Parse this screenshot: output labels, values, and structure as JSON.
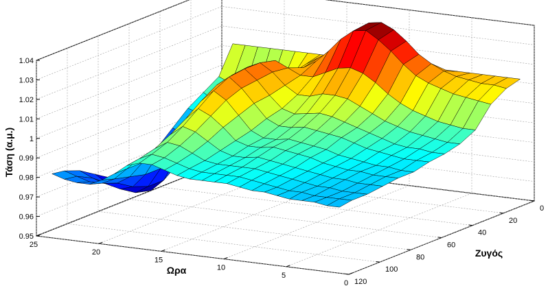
{
  "chart_data": {
    "type": "surface3d",
    "zlabel": "Τάση (α.μ.)",
    "xlabel": "Ωρα",
    "ylabel": "Ζυγός",
    "zticks": [
      "0.95",
      "0.96",
      "0.97",
      "0.98",
      "0.99",
      "1",
      "1.01",
      "1.02",
      "1.03",
      "1.04"
    ],
    "xticks": [
      "25",
      "20",
      "15",
      "10",
      "5",
      "0"
    ],
    "yticks": [
      "0",
      "20",
      "40",
      "60",
      "80",
      "100",
      "120"
    ],
    "hour_range": [
      0,
      25
    ],
    "bus_range": [
      0,
      120
    ],
    "voltage_range": [
      0.95,
      1.04
    ],
    "grid": true,
    "colormap": "jet",
    "surface": {
      "hours": [
        1,
        2,
        3,
        4,
        5,
        6,
        7,
        8,
        9,
        10,
        11,
        12,
        13,
        14,
        15,
        16,
        17,
        18,
        19,
        20,
        21,
        22,
        23,
        24
      ],
      "bus_samples": [
        1,
        10,
        20,
        30,
        40,
        50,
        60,
        70,
        80,
        90,
        100,
        110,
        118
      ],
      "voltage_by_bus_row": [
        [
          1.012,
          1.012,
          1.012,
          1.012,
          1.012,
          1.012,
          1.012,
          1.012,
          1.012,
          1.012,
          1.012,
          1.012,
          1.012,
          1.012,
          1.012,
          1.012,
          1.012,
          1.012,
          1.012,
          1.012,
          1.012,
          1.012,
          1.012,
          1.012
        ],
        [
          1.01,
          1.011,
          1.011,
          1.012,
          1.013,
          1.015,
          1.018,
          1.022,
          1.028,
          1.033,
          1.036,
          1.035,
          1.03,
          1.024,
          1.018,
          1.014,
          1.01,
          1.004,
          0.998,
          0.993,
          0.991,
          0.992,
          0.995,
          0.998
        ],
        [
          1.005,
          1.006,
          1.007,
          1.008,
          1.01,
          1.012,
          1.015,
          1.02,
          1.026,
          1.031,
          1.035,
          1.034,
          1.029,
          1.022,
          1.016,
          1.012,
          1.008,
          1.0,
          0.993,
          0.988,
          0.985,
          0.986,
          0.989,
          0.993
        ],
        [
          0.995,
          0.995,
          0.996,
          0.997,
          0.999,
          1.001,
          1.004,
          1.008,
          1.013,
          1.017,
          1.019,
          1.018,
          1.015,
          1.012,
          1.012,
          1.015,
          1.018,
          1.015,
          1.006,
          0.995,
          0.988,
          0.985,
          0.986,
          0.988
        ],
        [
          0.991,
          0.991,
          0.992,
          0.993,
          0.994,
          0.996,
          0.998,
          1.001,
          1.004,
          1.007,
          1.008,
          1.008,
          1.006,
          1.006,
          1.01,
          1.016,
          1.02,
          1.017,
          1.006,
          0.993,
          0.984,
          0.979,
          0.979,
          0.981
        ],
        [
          0.989,
          0.989,
          0.99,
          0.99,
          0.991,
          0.993,
          0.995,
          0.997,
          0.999,
          1.001,
          1.002,
          1.001,
          1.0,
          1.002,
          1.008,
          1.015,
          1.02,
          1.016,
          1.004,
          0.989,
          0.978,
          0.972,
          0.971,
          0.974
        ],
        [
          0.988,
          0.988,
          0.988,
          0.989,
          0.99,
          0.991,
          0.993,
          0.995,
          0.996,
          0.997,
          0.998,
          0.997,
          0.997,
          1.0,
          1.007,
          1.014,
          1.019,
          1.014,
          1.0,
          0.984,
          0.972,
          0.965,
          0.964,
          0.968
        ],
        [
          0.986,
          0.986,
          0.987,
          0.987,
          0.988,
          0.989,
          0.99,
          0.992,
          0.993,
          0.994,
          0.995,
          0.994,
          0.994,
          0.997,
          1.004,
          1.011,
          1.015,
          1.009,
          0.994,
          0.978,
          0.966,
          0.96,
          0.96,
          0.965
        ],
        [
          0.986,
          0.986,
          0.986,
          0.987,
          0.987,
          0.988,
          0.989,
          0.991,
          0.992,
          0.993,
          0.994,
          0.993,
          0.993,
          0.995,
          1.001,
          1.006,
          1.009,
          1.003,
          0.99,
          0.976,
          0.966,
          0.962,
          0.963,
          0.968
        ],
        [
          0.985,
          0.985,
          0.985,
          0.986,
          0.986,
          0.987,
          0.988,
          0.989,
          0.99,
          0.991,
          0.992,
          0.991,
          0.991,
          0.993,
          0.997,
          1.001,
          1.003,
          0.998,
          0.987,
          0.976,
          0.969,
          0.967,
          0.969,
          0.973
        ],
        [
          0.984,
          0.984,
          0.984,
          0.985,
          0.985,
          0.986,
          0.987,
          0.988,
          0.989,
          0.99,
          0.99,
          0.99,
          0.99,
          0.991,
          0.994,
          0.997,
          0.998,
          0.994,
          0.986,
          0.978,
          0.974,
          0.973,
          0.975,
          0.978
        ],
        [
          0.984,
          0.984,
          0.984,
          0.984,
          0.985,
          0.985,
          0.986,
          0.987,
          0.988,
          0.989,
          0.989,
          0.989,
          0.989,
          0.99,
          0.992,
          0.994,
          0.995,
          0.992,
          0.986,
          0.98,
          0.977,
          0.977,
          0.979,
          0.981
        ],
        [
          0.983,
          0.983,
          0.984,
          0.984,
          0.984,
          0.985,
          0.986,
          0.986,
          0.987,
          0.988,
          0.988,
          0.988,
          0.988,
          0.989,
          0.991,
          0.993,
          0.993,
          0.991,
          0.986,
          0.982,
          0.979,
          0.979,
          0.98,
          0.982
        ]
      ]
    }
  }
}
